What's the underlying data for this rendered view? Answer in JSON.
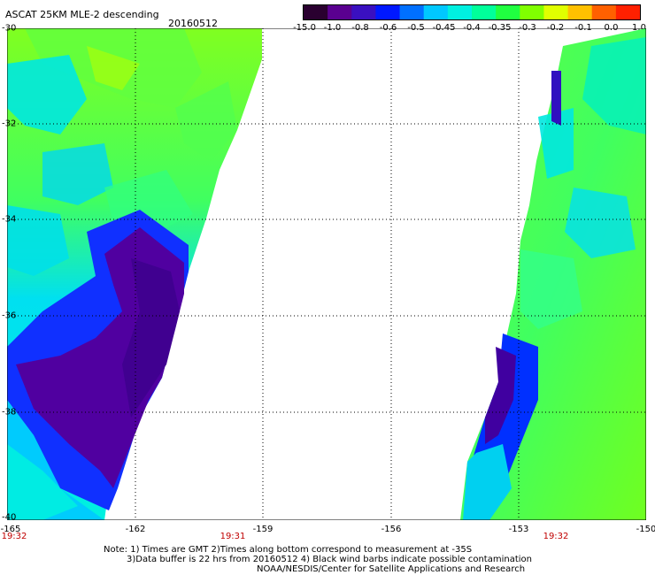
{
  "header": {
    "title": "ASCAT 25KM MLE-2 descending",
    "date": "20160512"
  },
  "colorbar": {
    "labels": [
      "-15.0",
      "-1.0",
      "-0.8",
      "-0.6",
      "-0.5",
      "-0.45",
      "-0.4",
      "-0.35",
      "-0.3",
      "-0.2",
      "-0.1",
      "0.0",
      "1.0"
    ],
    "colors": [
      "#2a0030",
      "#5a0090",
      "#3a10c0",
      "#0018ff",
      "#0070ff",
      "#00c8ff",
      "#00f0e0",
      "#00ff9a",
      "#20ff40",
      "#80ff00",
      "#e0ff00",
      "#ffc000",
      "#ff6000",
      "#ff2000"
    ]
  },
  "map": {
    "lat_labels": [
      "-30",
      "-32",
      "-34",
      "-36",
      "-38",
      "-40"
    ],
    "lon_labels": [
      "-165",
      "-162",
      "-159",
      "-156",
      "-153",
      "-150"
    ],
    "time_labels": [
      "19:32",
      "19:31",
      "19:32"
    ]
  },
  "notes": {
    "line1": "Note: 1) Times are GMT 2)Times along bottom correspond to measurement at -35S",
    "line2": "3)Data buffer is 22 hrs from 20160512 4) Black wind barbs indicate possible contamination",
    "line3": "NOAA/NESDIS/Center for Satellite Applications and Research"
  }
}
